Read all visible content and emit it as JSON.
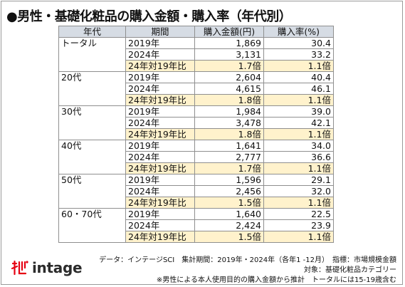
{
  "title": "●男性・基礎化粧品の購入金額・購入率（年代別）",
  "table": {
    "headers": [
      "年代",
      "期間",
      "購入金額(円)",
      "購入率(%)"
    ],
    "groups": [
      {
        "age": "トータル",
        "rows": [
          {
            "period": "2019年",
            "amount": "1,869",
            "rate": "30.4"
          },
          {
            "period": "2024年",
            "amount": "3,131",
            "rate": "33.2"
          },
          {
            "period": "24年対19年比",
            "amount": "1.7倍",
            "rate": "1.1倍"
          }
        ]
      },
      {
        "age": "20代",
        "rows": [
          {
            "period": "2019年",
            "amount": "2,604",
            "rate": "40.4"
          },
          {
            "period": "2024年",
            "amount": "4,615",
            "rate": "46.1"
          },
          {
            "period": "24年対19年比",
            "amount": "1.8倍",
            "rate": "1.1倍"
          }
        ]
      },
      {
        "age": "30代",
        "rows": [
          {
            "period": "2019年",
            "amount": "1,984",
            "rate": "39.0"
          },
          {
            "period": "2024年",
            "amount": "3,478",
            "rate": "42.1"
          },
          {
            "period": "24年対19年比",
            "amount": "1.8倍",
            "rate": "1.1倍"
          }
        ]
      },
      {
        "age": "40代",
        "rows": [
          {
            "period": "2019年",
            "amount": "1,641",
            "rate": "34.0"
          },
          {
            "period": "2024年",
            "amount": "2,777",
            "rate": "36.6"
          },
          {
            "period": "24年対19年比",
            "amount": "1.7倍",
            "rate": "1.1倍"
          }
        ]
      },
      {
        "age": "50代",
        "rows": [
          {
            "period": "2019年",
            "amount": "1,596",
            "rate": "29.1"
          },
          {
            "period": "2024年",
            "amount": "2,456",
            "rate": "32.0"
          },
          {
            "period": "24年対19年比",
            "amount": "1.5倍",
            "rate": "1.1倍"
          }
        ]
      },
      {
        "age": "60・70代",
        "rows": [
          {
            "period": "2019年",
            "amount": "1,640",
            "rate": "22.5"
          },
          {
            "period": "2024年",
            "amount": "2,424",
            "rate": "23.9"
          },
          {
            "period": "24年対19年比",
            "amount": "1.5倍",
            "rate": "1.1倍"
          }
        ]
      }
    ]
  },
  "footer": {
    "line1": "データ：インテージSCI　集計期間：2019年・2024年（各年1 -12月）　指標：市場規模金額",
    "line2": "対象：基礎化粧品カテゴリー",
    "line3": "※男性による本人使用目的の購入金額から推計　トータルには15-19歳含む"
  },
  "logo": {
    "text": "intage",
    "icon": "intage-logo-icon",
    "brand_color": "#e60012"
  },
  "colors": {
    "header_bg": "#d6dce4",
    "ratio_row_bg": "#fff2cc",
    "border": "#8f8f8f"
  }
}
